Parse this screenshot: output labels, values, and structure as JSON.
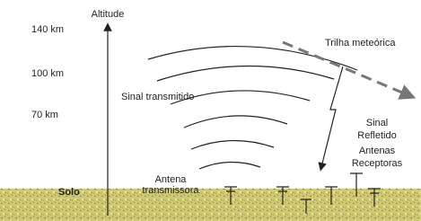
{
  "axis": {
    "title": "Altitude",
    "labels": [
      "140 km",
      "100 km",
      "70 km"
    ],
    "ground": "Solo"
  },
  "labels": {
    "transmitted": "Sinal transmitido",
    "meteor_trail": "Trilha meteórica",
    "reflected": [
      "Sinal",
      "Refletido"
    ],
    "receivers": [
      "Antenas",
      "Receptoras"
    ],
    "transmitter": [
      "Antena",
      "transmissora"
    ]
  }
}
